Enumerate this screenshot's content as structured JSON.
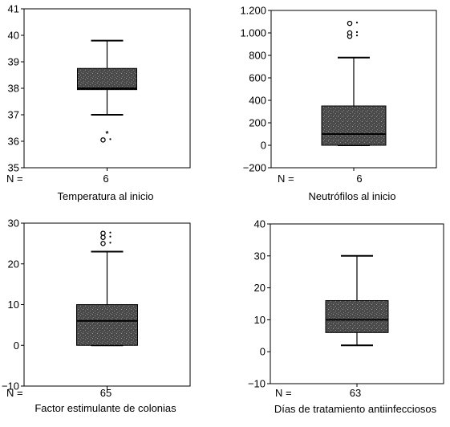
{
  "chart_data": [
    {
      "type": "boxplot",
      "xlabel": "Temperatura al inicio",
      "n_label": "N =",
      "n": "6",
      "ylim": [
        35,
        41
      ],
      "yticks": [
        35,
        36,
        37,
        38,
        39,
        40,
        41
      ],
      "tick_labels": [
        "35",
        "36",
        "37",
        "38",
        "39",
        "40",
        "41"
      ],
      "box": {
        "min": 37.0,
        "q1": 37.95,
        "median": 38.0,
        "q3": 38.75,
        "max": 39.8
      },
      "outliers": [
        {
          "value": 36.05,
          "symbol": "o"
        },
        {
          "value": 36.3,
          "symbol": "*"
        }
      ]
    },
    {
      "type": "boxplot",
      "xlabel": "Neutrófilos al inicio",
      "n_label": "N =",
      "n": "6",
      "ylim": [
        -200,
        1200
      ],
      "yticks": [
        -200,
        0,
        200,
        400,
        600,
        800,
        1000,
        1200
      ],
      "tick_labels": [
        "−200",
        "0",
        "200",
        "400",
        "600",
        "800",
        "1.000",
        "1.200"
      ],
      "box": {
        "min": 0,
        "q1": 0,
        "median": 100,
        "q3": 350,
        "max": 780
      },
      "outliers": [
        {
          "value": 1085,
          "symbol": "o"
        },
        {
          "value": 970,
          "symbol": "o"
        },
        {
          "value": 1000,
          "symbol": "o"
        }
      ]
    },
    {
      "type": "boxplot",
      "xlabel": "Factor estimulante de colonias",
      "n_label": "N =",
      "n": "65",
      "ylim": [
        -10,
        30
      ],
      "yticks": [
        -10,
        0,
        10,
        20,
        30
      ],
      "tick_labels": [
        "−10",
        "0",
        "10",
        "20",
        "30"
      ],
      "box": {
        "min": 0,
        "q1": 0,
        "median": 6,
        "q3": 10,
        "max": 23
      },
      "outliers": [
        {
          "value": 27.5,
          "symbol": "o"
        },
        {
          "value": 26.5,
          "symbol": "o"
        },
        {
          "value": 25,
          "symbol": "o"
        }
      ]
    },
    {
      "type": "boxplot",
      "xlabel": "Días de tratamiento antiinfecciosos",
      "n_label": "N =",
      "n": "63",
      "ylim": [
        -10,
        40
      ],
      "yticks": [
        -10,
        0,
        10,
        20,
        30,
        40
      ],
      "tick_labels": [
        "−10",
        "0",
        "10",
        "20",
        "30",
        "40"
      ],
      "box": {
        "min": 2,
        "q1": 6,
        "median": 10,
        "q3": 16,
        "max": 30
      },
      "outliers": []
    }
  ]
}
